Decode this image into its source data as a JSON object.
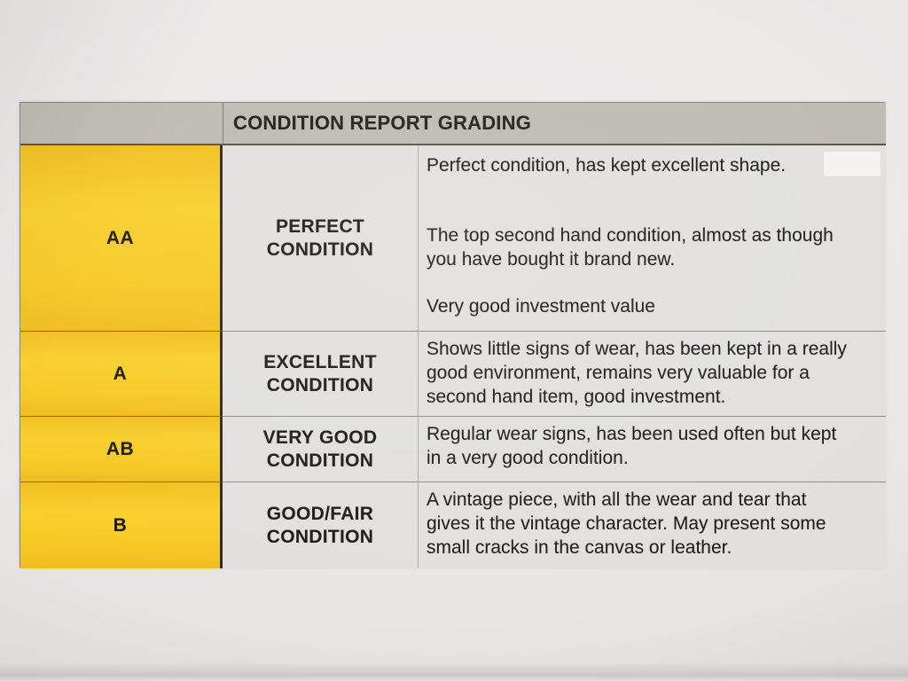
{
  "table": {
    "header": {
      "title": "CONDITION REPORT GRADING"
    },
    "rows": [
      {
        "grade": "AA",
        "label": "PERFECT CONDITION",
        "description_paragraphs": [
          "Perfect condition, has kept excellent shape.",
          "The top second hand condition, almost as though you have bought it brand new.",
          "Very good investment value"
        ]
      },
      {
        "grade": "A",
        "label": "EXCELLENT CONDITION",
        "description_paragraphs": [
          "Shows little signs of wear, has been kept in a really good environment, remains very valuable for a second hand item, good investment."
        ]
      },
      {
        "grade": "AB",
        "label": "VERY GOOD CONDITION",
        "description_paragraphs": [
          "Regular wear signs, has been used often but kept in a very good condition."
        ]
      },
      {
        "grade": "B",
        "label": "GOOD/FAIR CONDITION",
        "description_paragraphs": [
          "A vintage piece, with all the wear and tear that gives it the vintage character. May present some small cracks in the canvas or leather."
        ]
      }
    ],
    "colors": {
      "grade_cell_yellow": "#f6c922",
      "header_gray": "#bdbab2",
      "cell_gray": "#e1e0dc",
      "paper": "#eae8e7"
    }
  }
}
